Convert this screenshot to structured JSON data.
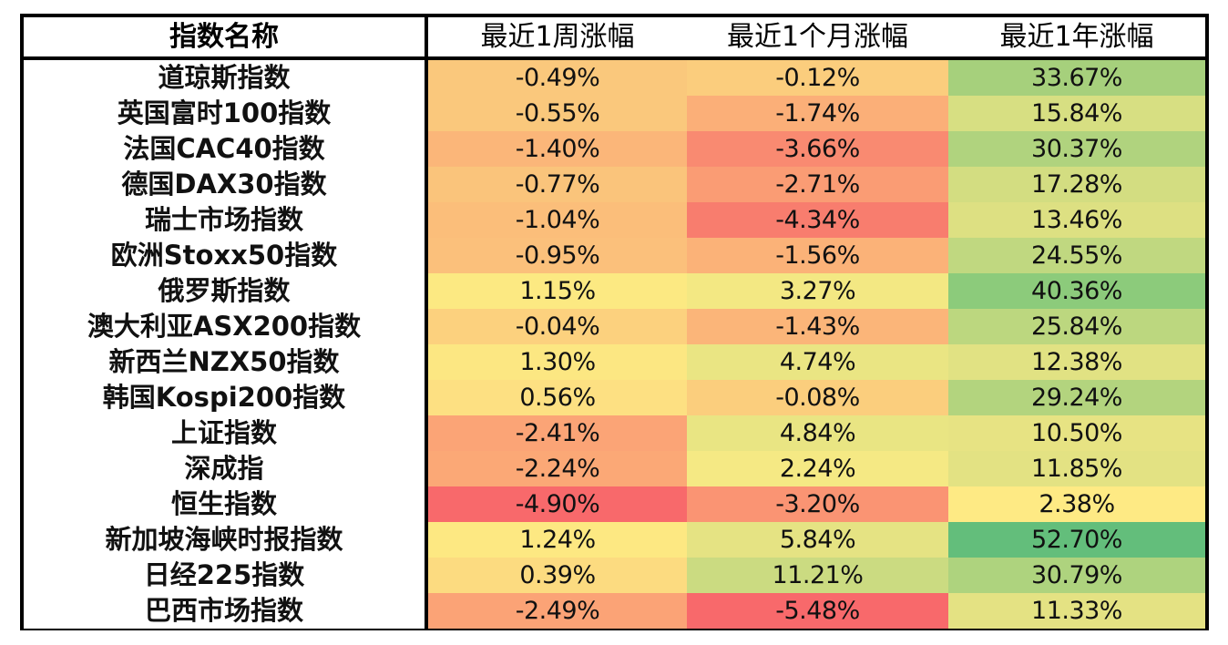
{
  "chart_data": {
    "type": "table",
    "columns": [
      "指数名称",
      "最近1周涨幅",
      "最近1个月涨幅",
      "最近1年涨幅"
    ],
    "rows": [
      {
        "name": "道琼斯指数",
        "values": [
          "-0.49%",
          "-0.12%",
          "33.67%"
        ],
        "colors": [
          "#fac87c",
          "#fbcd7d",
          "#a6d07c"
        ]
      },
      {
        "name": "英国富时100指数",
        "values": [
          "-0.55%",
          "-1.74%",
          "15.84%"
        ],
        "colors": [
          "#fac87c",
          "#fbaf78",
          "#d7df82"
        ]
      },
      {
        "name": "法国CAC40指数",
        "values": [
          "-1.40%",
          "-3.66%",
          "30.37%"
        ],
        "colors": [
          "#fbb679",
          "#f98a71",
          "#b0d37e"
        ]
      },
      {
        "name": "德国DAX30指数",
        "values": [
          "-0.77%",
          "-2.71%",
          "17.28%"
        ],
        "colors": [
          "#fac47b",
          "#fa9c74",
          "#d3dd81"
        ]
      },
      {
        "name": "瑞士市场指数",
        "values": [
          "-1.04%",
          "-4.34%",
          "13.46%"
        ],
        "colors": [
          "#fbbe7a",
          "#f87d6e",
          "#dde082"
        ]
      },
      {
        "name": "欧洲Stoxx50指数",
        "values": [
          "-0.95%",
          "-1.56%",
          "24.55%"
        ],
        "colors": [
          "#fbc07b",
          "#fbb278",
          "#c0d880"
        ]
      },
      {
        "name": "俄罗斯指数",
        "values": [
          "1.15%",
          "3.27%",
          "40.36%"
        ],
        "colors": [
          "#fce982",
          "#f3e883",
          "#8ccb7b"
        ]
      },
      {
        "name": "澳大利亚ASX200指数",
        "values": [
          "-0.04%",
          "-1.43%",
          "25.84%"
        ],
        "colors": [
          "#fcd17e",
          "#fbb579",
          "#bcd77f"
        ]
      },
      {
        "name": "新西兰NZX50指数",
        "values": [
          "1.30%",
          "4.74%",
          "12.38%"
        ],
        "colors": [
          "#fce782",
          "#eae583",
          "#e1e283"
        ]
      },
      {
        "name": "韩国Kospi200指数",
        "values": [
          "0.56%",
          "-0.08%",
          "29.24%"
        ],
        "colors": [
          "#fde082",
          "#fbce7d",
          "#b3d47e"
        ]
      },
      {
        "name": "上证指数",
        "values": [
          "-2.41%",
          "4.84%",
          "10.50%"
        ],
        "colors": [
          "#fba476",
          "#e9e583",
          "#e7e383"
        ]
      },
      {
        "name": "深成指",
        "values": [
          "-2.24%",
          "2.24%",
          "11.85%"
        ],
        "colors": [
          "#fba876",
          "#f5e984",
          "#e3e283"
        ]
      },
      {
        "name": "恒生指数",
        "values": [
          "-4.90%",
          "-3.20%",
          "2.38%"
        ],
        "colors": [
          "#f8696b",
          "#fa9473",
          "#feea84"
        ]
      },
      {
        "name": "新加坡海峡时报指数",
        "values": [
          "1.24%",
          "5.84%",
          "52.70%"
        ],
        "colors": [
          "#fde882",
          "#e5e383",
          "#63be7b"
        ]
      },
      {
        "name": "日经225指数",
        "values": [
          "0.39%",
          "11.21%",
          "30.79%"
        ],
        "colors": [
          "#fcdb80",
          "#cbdb81",
          "#aed37e"
        ]
      },
      {
        "name": "巴西市场指数",
        "values": [
          "-2.49%",
          "-5.48%",
          "11.33%"
        ],
        "colors": [
          "#fba376",
          "#f8696b",
          "#e4e283"
        ]
      }
    ]
  }
}
